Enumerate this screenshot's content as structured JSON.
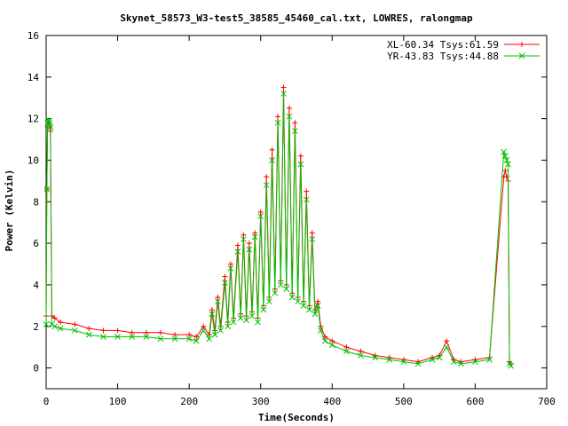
{
  "chart_data": {
    "type": "line",
    "title": "Skynet_58573_W3-test5_38585_45460_cal.txt, LOWRES, ralongmap",
    "xlabel": "Time(Seconds)",
    "ylabel": "Power (Kelvin)",
    "xlim": [
      0,
      700
    ],
    "ylim": [
      -1,
      16
    ],
    "x_ticks": [
      0,
      100,
      200,
      300,
      400,
      500,
      600,
      700
    ],
    "y_ticks": [
      0,
      2,
      4,
      6,
      8,
      10,
      12,
      14,
      16
    ],
    "x_tick_labels": [
      "0",
      "100",
      "200",
      "300",
      "400",
      "500",
      "600",
      "700"
    ],
    "y_tick_labels": [
      "0",
      "2",
      "4",
      "6",
      "8",
      "10",
      "12",
      "14",
      "16"
    ],
    "grid": false,
    "legend_position": "top-right",
    "series": [
      {
        "name": "XL-60.34 Tsys:61.59",
        "color": "#ff0000",
        "marker": "plus",
        "x": [
          0,
          1,
          2,
          3,
          4,
          5,
          6,
          8,
          12,
          20,
          40,
          60,
          80,
          100,
          120,
          140,
          160,
          180,
          200,
          210,
          220,
          228,
          232,
          236,
          240,
          244,
          250,
          254,
          258,
          262,
          268,
          272,
          276,
          280,
          284,
          288,
          292,
          296,
          300,
          304,
          308,
          312,
          316,
          320,
          324,
          328,
          332,
          336,
          340,
          344,
          348,
          352,
          356,
          360,
          364,
          368,
          372,
          376,
          380,
          384,
          390,
          400,
          420,
          440,
          460,
          480,
          500,
          520,
          540,
          550,
          560,
          570,
          580,
          600,
          620,
          640,
          642,
          644,
          646,
          648,
          650
        ],
        "y": [
          2.5,
          8.6,
          11.6,
          11.8,
          11.8,
          11.6,
          11.4,
          2.5,
          2.4,
          2.2,
          2.1,
          1.9,
          1.8,
          1.8,
          1.7,
          1.7,
          1.7,
          1.6,
          1.6,
          1.5,
          2.0,
          1.6,
          2.8,
          1.8,
          3.4,
          2.0,
          4.4,
          2.2,
          5.0,
          2.4,
          5.9,
          2.6,
          6.4,
          2.5,
          6.0,
          2.7,
          6.5,
          2.4,
          7.5,
          3.0,
          9.2,
          3.4,
          10.5,
          3.8,
          12.1,
          4.2,
          13.5,
          4.0,
          12.5,
          3.6,
          11.8,
          3.4,
          10.2,
          3.2,
          8.5,
          3.0,
          6.5,
          2.8,
          3.2,
          2.0,
          1.5,
          1.3,
          1.0,
          0.8,
          0.6,
          0.5,
          0.4,
          0.3,
          0.5,
          0.6,
          1.3,
          0.4,
          0.3,
          0.4,
          0.5,
          9.2,
          9.5,
          9.2,
          9.0,
          0.3,
          0.2
        ]
      },
      {
        "name": "YR-43.83 Tsys:44.88",
        "color": "#00c000",
        "marker": "cross",
        "x": [
          0,
          1,
          2,
          3,
          4,
          5,
          6,
          8,
          12,
          20,
          40,
          60,
          80,
          100,
          120,
          140,
          160,
          180,
          200,
          210,
          220,
          228,
          232,
          236,
          240,
          244,
          250,
          254,
          258,
          262,
          268,
          272,
          276,
          280,
          284,
          288,
          292,
          296,
          300,
          304,
          308,
          312,
          316,
          320,
          324,
          328,
          332,
          336,
          340,
          344,
          348,
          352,
          356,
          360,
          364,
          368,
          372,
          376,
          380,
          384,
          390,
          400,
          420,
          440,
          460,
          480,
          500,
          520,
          540,
          550,
          560,
          570,
          580,
          600,
          620,
          640,
          642,
          644,
          646,
          648,
          650
        ],
        "y": [
          2.1,
          8.6,
          11.8,
          11.9,
          11.9,
          11.8,
          11.6,
          2.1,
          2.0,
          1.9,
          1.8,
          1.6,
          1.5,
          1.5,
          1.5,
          1.5,
          1.4,
          1.4,
          1.4,
          1.3,
          1.8,
          1.4,
          2.6,
          1.6,
          3.2,
          1.8,
          4.1,
          2.0,
          4.8,
          2.2,
          5.6,
          2.4,
          6.2,
          2.3,
          5.7,
          2.5,
          6.3,
          2.2,
          7.3,
          2.8,
          8.8,
          3.2,
          10.0,
          3.6,
          11.8,
          4.0,
          13.2,
          3.8,
          12.1,
          3.4,
          11.4,
          3.2,
          9.8,
          3.0,
          8.1,
          2.8,
          6.2,
          2.6,
          3.0,
          1.8,
          1.3,
          1.1,
          0.8,
          0.6,
          0.5,
          0.4,
          0.3,
          0.2,
          0.4,
          0.5,
          1.0,
          0.3,
          0.2,
          0.3,
          0.4,
          10.4,
          10.2,
          10.0,
          9.8,
          0.2,
          0.1
        ]
      }
    ]
  }
}
